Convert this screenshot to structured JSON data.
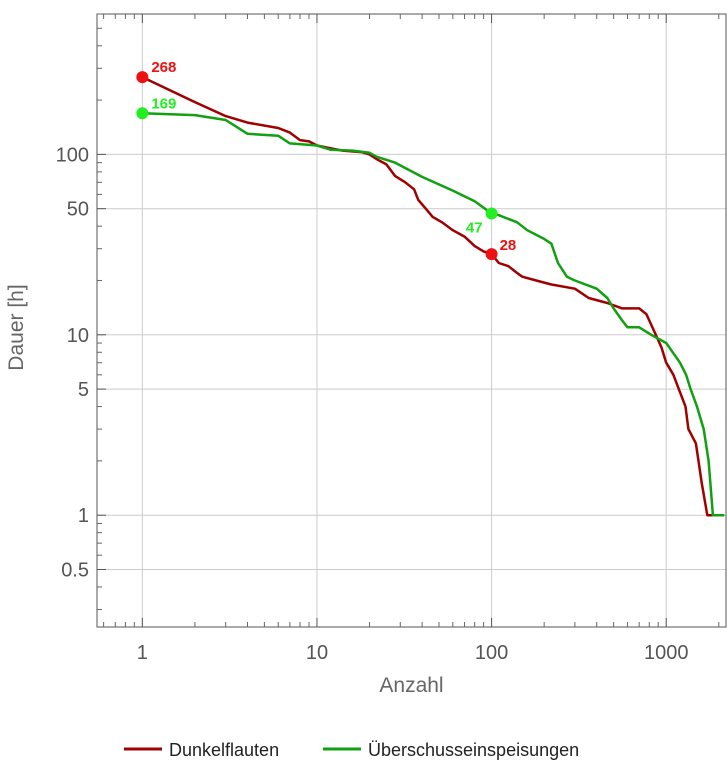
{
  "chart_data": {
    "type": "line",
    "xlabel": "Anzahl",
    "ylabel": "Dauer [h]",
    "x_scale": "log",
    "y_scale": "log",
    "xlim": [
      0.55,
      2200
    ],
    "ylim": [
      0.24,
      600
    ],
    "grid": true,
    "legend_position": "bottom",
    "x_ticks": [
      {
        "value": 1,
        "label": "1"
      },
      {
        "value": 10,
        "label": "10"
      },
      {
        "value": 100,
        "label": "100"
      },
      {
        "value": 1000,
        "label": "1000"
      }
    ],
    "y_ticks": [
      {
        "value": 0.5,
        "label": "0.5"
      },
      {
        "value": 1,
        "label": "1"
      },
      {
        "value": 5,
        "label": "5"
      },
      {
        "value": 10,
        "label": "10"
      },
      {
        "value": 50,
        "label": "50"
      },
      {
        "value": 100,
        "label": "100"
      }
    ],
    "series": [
      {
        "name": "Dunkelflauten",
        "color": "#a00000",
        "points": [
          [
            1,
            268
          ],
          [
            2,
            195
          ],
          [
            3,
            163
          ],
          [
            4,
            150
          ],
          [
            6,
            140
          ],
          [
            7,
            132
          ],
          [
            8,
            120
          ],
          [
            9,
            118
          ],
          [
            10,
            112
          ],
          [
            12,
            108
          ],
          [
            14,
            105
          ],
          [
            18,
            103
          ],
          [
            20,
            100
          ],
          [
            22,
            94
          ],
          [
            25,
            88
          ],
          [
            28,
            76
          ],
          [
            32,
            70
          ],
          [
            36,
            64
          ],
          [
            38,
            56
          ],
          [
            42,
            50
          ],
          [
            46,
            45
          ],
          [
            52,
            42
          ],
          [
            60,
            38
          ],
          [
            70,
            35
          ],
          [
            80,
            31
          ],
          [
            90,
            29
          ],
          [
            100,
            28
          ],
          [
            110,
            25
          ],
          [
            125,
            24
          ],
          [
            140,
            22
          ],
          [
            150,
            21
          ],
          [
            180,
            20
          ],
          [
            220,
            19
          ],
          [
            300,
            18
          ],
          [
            360,
            16
          ],
          [
            460,
            15
          ],
          [
            560,
            14
          ],
          [
            700,
            14
          ],
          [
            770,
            13
          ],
          [
            800,
            12
          ],
          [
            880,
            9.8
          ],
          [
            940,
            8.5
          ],
          [
            1000,
            7
          ],
          [
            1100,
            6
          ],
          [
            1180,
            5
          ],
          [
            1290,
            4
          ],
          [
            1340,
            3
          ],
          [
            1480,
            2.5
          ],
          [
            1600,
            1.5
          ],
          [
            1720,
            1
          ],
          [
            2050,
            1
          ]
        ],
        "highlight": {
          "x": 1,
          "y": 268,
          "label": "268"
        },
        "highlight2": {
          "x": 100,
          "y": 28,
          "label": "28"
        }
      },
      {
        "name": "Überschusseinspeisungen",
        "color": "#11a011",
        "points": [
          [
            1,
            169
          ],
          [
            2,
            165
          ],
          [
            3,
            155
          ],
          [
            4,
            130
          ],
          [
            6,
            127
          ],
          [
            7,
            115
          ],
          [
            10,
            112
          ],
          [
            12,
            106
          ],
          [
            16,
            105
          ],
          [
            20,
            102
          ],
          [
            22,
            97
          ],
          [
            28,
            90
          ],
          [
            40,
            75
          ],
          [
            60,
            63
          ],
          [
            80,
            55
          ],
          [
            100,
            47
          ],
          [
            110,
            46
          ],
          [
            140,
            42
          ],
          [
            160,
            38
          ],
          [
            200,
            34
          ],
          [
            220,
            32
          ],
          [
            240,
            25
          ],
          [
            270,
            21
          ],
          [
            300,
            20
          ],
          [
            400,
            18
          ],
          [
            460,
            16
          ],
          [
            500,
            14
          ],
          [
            560,
            12
          ],
          [
            600,
            11
          ],
          [
            700,
            11
          ],
          [
            820,
            10
          ],
          [
            1000,
            9
          ],
          [
            1200,
            7
          ],
          [
            1300,
            6
          ],
          [
            1380,
            5
          ],
          [
            1500,
            4
          ],
          [
            1640,
            3
          ],
          [
            1750,
            2
          ],
          [
            1850,
            1
          ],
          [
            2150,
            1
          ]
        ],
        "highlight": {
          "x": 1,
          "y": 169,
          "label": "169"
        },
        "highlight2": {
          "x": 100,
          "y": 47,
          "label": "47"
        }
      }
    ]
  }
}
